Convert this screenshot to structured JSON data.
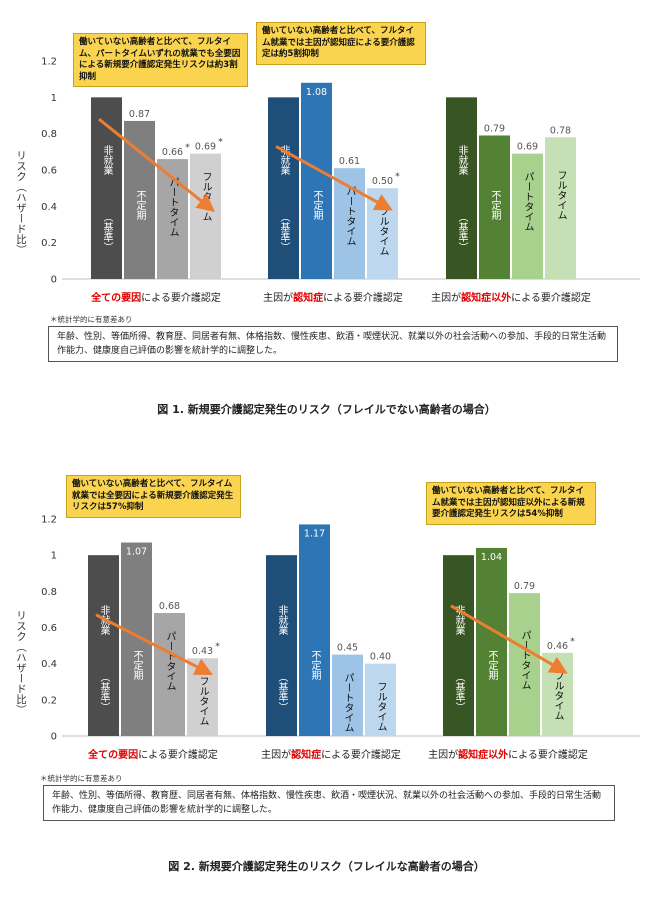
{
  "chart_data": [
    {
      "type": "bar",
      "ylabel": "リスク（ハザード比）",
      "ylim": [
        0,
        1.2
      ],
      "yticks": [
        "0",
        "0.2",
        "0.4",
        "0.6",
        "0.8",
        "1",
        "1.2"
      ],
      "groups": [
        {
          "title_parts": [
            {
              "text": "全ての要因",
              "red": true
            },
            {
              "text": "による要介護認定",
              "red": false
            }
          ],
          "bars": [
            {
              "label": "非就業\n（基準）",
              "value": 1.0,
              "value_label": "",
              "star": false
            },
            {
              "label": "不定期",
              "value": 0.87,
              "value_label": "0.87",
              "star": false
            },
            {
              "label": "パートタイム",
              "value": 0.66,
              "value_label": "0.66",
              "star": true
            },
            {
              "label": "フルタイム",
              "value": 0.69,
              "value_label": "0.69",
              "star": true
            }
          ]
        },
        {
          "title_parts": [
            {
              "text": "主因が",
              "red": false
            },
            {
              "text": "認知症",
              "red": true
            },
            {
              "text": "による要介護認定",
              "red": false
            }
          ],
          "bars": [
            {
              "label": "非就業\n（基準）",
              "value": 1.0,
              "value_label": "",
              "star": false
            },
            {
              "label": "不定期",
              "value": 1.08,
              "value_label": "1.08",
              "star": false
            },
            {
              "label": "パートタイム",
              "value": 0.61,
              "value_label": "0.61",
              "star": false
            },
            {
              "label": "フルタイム",
              "value": 0.5,
              "value_label": "0.50",
              "star": true
            }
          ]
        },
        {
          "title_parts": [
            {
              "text": "主因が",
              "red": false
            },
            {
              "text": "認知症以外",
              "red": true
            },
            {
              "text": "による要介護認定",
              "red": false
            }
          ],
          "bars": [
            {
              "label": "非就業\n（基準）",
              "value": 1.0,
              "value_label": "",
              "star": false
            },
            {
              "label": "不定期",
              "value": 0.79,
              "value_label": "0.79",
              "star": false
            },
            {
              "label": "パートタイム",
              "value": 0.69,
              "value_label": "0.69",
              "star": false
            },
            {
              "label": "フルタイム",
              "value": 0.78,
              "value_label": "0.78",
              "star": false
            }
          ]
        }
      ]
    },
    {
      "type": "bar",
      "ylabel": "リスク（ハザード比）",
      "ylim": [
        0,
        1.2
      ],
      "yticks": [
        "0",
        "0.2",
        "0.4",
        "0.6",
        "0.8",
        "1",
        "1.2"
      ],
      "groups": [
        {
          "title_parts": [
            {
              "text": "全ての要因",
              "red": true
            },
            {
              "text": "による要介護認定",
              "red": false
            }
          ],
          "bars": [
            {
              "label": "非就業\n（基準）",
              "value": 1.0,
              "value_label": "",
              "star": false
            },
            {
              "label": "不定期",
              "value": 1.07,
              "value_label": "1.07",
              "star": false
            },
            {
              "label": "パートタイム",
              "value": 0.68,
              "value_label": "0.68",
              "star": false
            },
            {
              "label": "フルタイム",
              "value": 0.43,
              "value_label": "0.43",
              "star": true
            }
          ]
        },
        {
          "title_parts": [
            {
              "text": "主因が",
              "red": false
            },
            {
              "text": "認知症",
              "red": true
            },
            {
              "text": "による要介護認定",
              "red": false
            }
          ],
          "bars": [
            {
              "label": "非就業\n（基準）",
              "value": 1.0,
              "value_label": "",
              "star": false
            },
            {
              "label": "不定期",
              "value": 1.17,
              "value_label": "1.17",
              "star": false
            },
            {
              "label": "パートタイム",
              "value": 0.45,
              "value_label": "0.45",
              "star": false
            },
            {
              "label": "フルタイム",
              "value": 0.4,
              "value_label": "0.40",
              "star": false
            }
          ]
        },
        {
          "title_parts": [
            {
              "text": "主因が",
              "red": false
            },
            {
              "text": "認知症以外",
              "red": true
            },
            {
              "text": "による要介護認定",
              "red": false
            }
          ],
          "bars": [
            {
              "label": "非就業\n（基準）",
              "value": 1.0,
              "value_label": "",
              "star": false
            },
            {
              "label": "不定期",
              "value": 1.04,
              "value_label": "1.04",
              "star": false
            },
            {
              "label": "パートタイム",
              "value": 0.79,
              "value_label": "0.79",
              "star": false
            },
            {
              "label": "フルタイム",
              "value": 0.46,
              "value_label": "0.46",
              "star": true
            }
          ]
        }
      ]
    }
  ],
  "palettes": [
    [
      "#4d4d4d",
      "#7f7f7f",
      "#a6a6a6",
      "#d0d0d0"
    ],
    [
      "#1f4e79",
      "#2e75b6",
      "#9dc3e6",
      "#bdd7ee"
    ],
    [
      "#375623",
      "#548235",
      "#a9d18e",
      "#c5e0b4"
    ]
  ],
  "colors": {
    "arrow": "#ed7d31",
    "red_text": "#e00000",
    "note_fill": "#fbd44f"
  },
  "fig1": {
    "note1": "働いていない高齢者と比べて、フルタイム、パートタイムいずれの就業でも全要因による新規要介護認定発生リスクは約3割抑制",
    "note2": "働いていない高齢者と比べて、フルタイム就業では主因が認知症による要介護認定は約5割抑制",
    "footnote": "＊統計学的に有意差あり",
    "adjust": "年齢、性別、等価所得、教育歴、同居者有無、体格指数、慢性疾患、飲酒・喫煙状況、就業以外の社会活動への参加、手段的日常生活動作能力、健康度自己評価の影響を統計学的に調整した。",
    "caption": "図 1.  新規要介護認定発生のリスク（フレイルでない高齢者の場合）"
  },
  "fig2": {
    "note1": "働いていない高齢者と比べて、フルタイム就業では全要因による新規要介護認定発生リスクは57%抑制",
    "note2": "働いていない高齢者と比べて、フルタイム就業では主因が認知症以外による新規要介護認定発生リスクは54%抑制",
    "footnote": "＊統計学的に有意差あり",
    "adjust": "年齢、性別、等価所得、教育歴、同居者有無、体格指数、慢性疾患、飲酒・喫煙状況、就業以外の社会活動への参加、手段的日常生活動作能力、健康度自己評価の影響を統計学的に調整した。",
    "caption": "図 2.  新規要介護認定発生のリスク（フレイルな高齢者の場合）"
  }
}
